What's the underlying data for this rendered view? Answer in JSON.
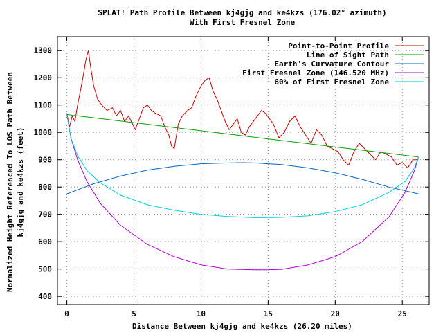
{
  "chart_data": {
    "type": "line",
    "title": "SPLAT! Path Profile Between kj4gjg and ke4kzs (176.02° azimuth)",
    "subtitle": "With First Fresnel Zone",
    "xlabel": "Distance Between kj4gjg and ke4kzs (26.20 miles)",
    "ylabel": "Normalized Height Referenced To LOS Path Between",
    "ylabel2": "kj4gjg and ke4kzs (feet)",
    "xlim": [
      -0.7,
      27.0
    ],
    "ylim": [
      370,
      1350
    ],
    "xticks": [
      0,
      5,
      10,
      15,
      20,
      25
    ],
    "yticks": [
      400,
      500,
      600,
      700,
      800,
      900,
      1000,
      1100,
      1200,
      1300
    ],
    "grid": true,
    "legend_position": "top-right",
    "series": [
      {
        "name": "Point-to-Point Profile",
        "color": "#cc0000",
        "x": [
          0,
          0.2,
          0.4,
          0.6,
          0.8,
          1.0,
          1.2,
          1.4,
          1.6,
          1.8,
          2.0,
          2.3,
          2.6,
          3.0,
          3.4,
          3.7,
          4.0,
          4.3,
          4.6,
          4.9,
          5.1,
          5.4,
          5.7,
          6.0,
          6.3,
          6.6,
          7.0,
          7.3,
          7.6,
          7.8,
          8.0,
          8.3,
          8.6,
          9.0,
          9.3,
          9.6,
          10.0,
          10.3,
          10.6,
          10.9,
          11.2,
          11.5,
          11.8,
          12.1,
          12.4,
          12.7,
          13.0,
          13.3,
          13.6,
          13.9,
          14.2,
          14.5,
          14.8,
          15.1,
          15.4,
          15.8,
          16.2,
          16.6,
          17.0,
          17.4,
          17.8,
          18.2,
          18.6,
          19.0,
          19.4,
          19.8,
          20.2,
          20.6,
          21.0,
          21.4,
          21.8,
          22.2,
          22.6,
          23.0,
          23.4,
          23.8,
          24.2,
          24.6,
          25.0,
          25.4,
          25.8,
          26.2
        ],
        "y": [
          1070,
          1020,
          1060,
          1040,
          1100,
          1150,
          1200,
          1260,
          1300,
          1230,
          1170,
          1120,
          1100,
          1080,
          1090,
          1060,
          1080,
          1040,
          1060,
          1030,
          1010,
          1050,
          1090,
          1100,
          1080,
          1070,
          1060,
          1020,
          990,
          950,
          940,
          1030,
          1060,
          1080,
          1090,
          1130,
          1170,
          1190,
          1200,
          1150,
          1120,
          1080,
          1040,
          1010,
          1030,
          1050,
          1000,
          990,
          1020,
          1040,
          1060,
          1080,
          1070,
          1050,
          1030,
          980,
          1000,
          1040,
          1060,
          1020,
          990,
          960,
          1010,
          990,
          950,
          940,
          930,
          900,
          880,
          930,
          960,
          940,
          920,
          900,
          930,
          920,
          910,
          880,
          890,
          870,
          900,
          900
        ]
      },
      {
        "name": "Line of Sight Path",
        "color": "#00a000",
        "x": [
          0,
          26.2
        ],
        "y": [
          1065,
          910
        ]
      },
      {
        "name": "Earth's Curvature Contour",
        "color": "#0066cc",
        "x": [
          0,
          2,
          4,
          6,
          8,
          10,
          12,
          13.1,
          14,
          16,
          18,
          20,
          22,
          24,
          26.2
        ],
        "y": [
          775,
          812,
          840,
          862,
          876,
          885,
          888,
          889,
          888,
          882,
          870,
          852,
          828,
          800,
          775
        ]
      },
      {
        "name": "First Fresnel Zone (146.520 MHz)",
        "color": "#b000d0",
        "x": [
          0,
          0.3,
          0.8,
          1.5,
          2.5,
          4,
          6,
          8,
          10,
          12,
          14,
          15,
          16,
          18,
          20,
          22,
          24,
          25.2,
          25.9,
          26.2
        ],
        "y": [
          1065,
          980,
          900,
          820,
          740,
          660,
          590,
          545,
          515,
          500,
          497,
          497,
          499,
          515,
          545,
          600,
          690,
          780,
          860,
          910
        ]
      },
      {
        "name": "60% of First Fresnel Zone",
        "color": "#00d0e0",
        "x": [
          0,
          0.3,
          0.8,
          1.5,
          2.5,
          4,
          6,
          8,
          10,
          12,
          14,
          15,
          16,
          18,
          20,
          22,
          24,
          25.2,
          25.9,
          26.2
        ],
        "y": [
          1065,
          980,
          915,
          860,
          815,
          770,
          735,
          715,
          700,
          692,
          688,
          688,
          689,
          695,
          710,
          735,
          780,
          820,
          870,
          910
        ]
      }
    ]
  }
}
